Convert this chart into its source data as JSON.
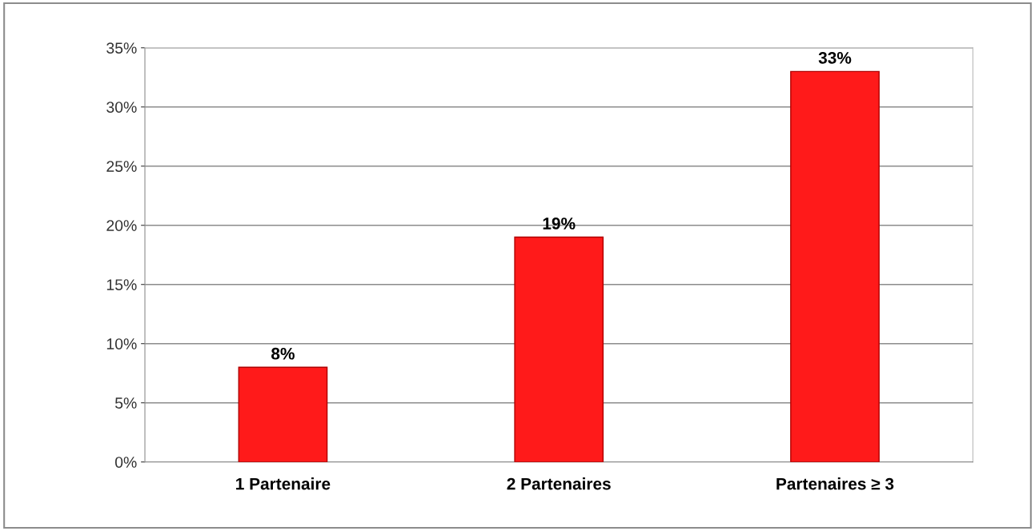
{
  "chart_data": {
    "type": "bar",
    "categories": [
      "1 Partenaire",
      "2 Partenaires",
      "Partenaires ≥ 3"
    ],
    "values": [
      8,
      19,
      33
    ],
    "value_labels": [
      "8%",
      "19%",
      "33%"
    ],
    "color": "#ff1a1a",
    "ylim": [
      0,
      35
    ],
    "yticks": [
      {
        "value": 0,
        "label": "0%"
      },
      {
        "value": 5,
        "label": "5%"
      },
      {
        "value": 10,
        "label": "10%"
      },
      {
        "value": 15,
        "label": "15%"
      },
      {
        "value": 20,
        "label": "20%"
      },
      {
        "value": 25,
        "label": "25%"
      },
      {
        "value": 30,
        "label": "30%"
      },
      {
        "value": 35,
        "label": "35%"
      }
    ],
    "grid": "y"
  }
}
